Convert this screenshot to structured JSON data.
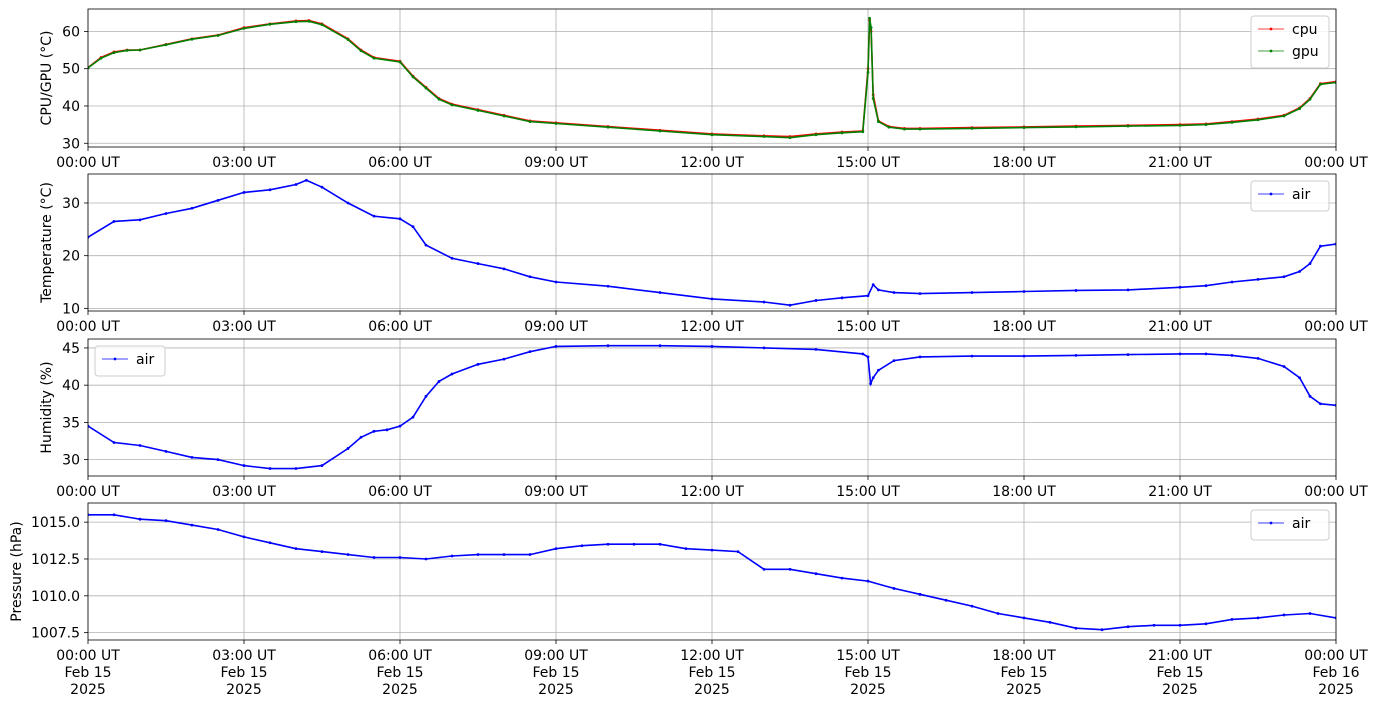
{
  "x_tick_labels": [
    "00:00 UT",
    "03:00 UT",
    "06:00 UT",
    "09:00 UT",
    "12:00 UT",
    "15:00 UT",
    "18:00 UT",
    "21:00 UT",
    "00:00 UT"
  ],
  "x_tick_date_labels": [
    [
      "Feb 15",
      "2025"
    ],
    [
      "Feb 15",
      "2025"
    ],
    [
      "Feb 15",
      "2025"
    ],
    [
      "Feb 15",
      "2025"
    ],
    [
      "Feb 15",
      "2025"
    ],
    [
      "Feb 15",
      "2025"
    ],
    [
      "Feb 15",
      "2025"
    ],
    [
      "Feb 15",
      "2025"
    ],
    [
      "Feb 16",
      "2025"
    ]
  ],
  "colors": {
    "cpu": "#ff0000",
    "gpu": "#008000",
    "air": "#0000ff",
    "grid": "#b0b0b0"
  },
  "chart_data": [
    {
      "type": "line",
      "ylabel": "CPU/GPU (°C)",
      "ylim": [
        29,
        66
      ],
      "yticks": [
        30,
        40,
        50,
        60
      ],
      "ytick_labels": [
        "30",
        "40",
        "50",
        "60"
      ],
      "grid": true,
      "legend_position": "top-right",
      "x_unit": "hours since 2025-02-15 00:00 UT",
      "xlim": [
        0,
        24
      ],
      "x": [
        0,
        0.25,
        0.5,
        0.75,
        1,
        1.5,
        2,
        2.5,
        3,
        3.5,
        4,
        4.25,
        4.5,
        5,
        5.25,
        5.5,
        6,
        6.25,
        6.5,
        6.75,
        7,
        7.5,
        8,
        8.5,
        9,
        10,
        11,
        12,
        13,
        13.5,
        14,
        14.5,
        14.9,
        15,
        15.03,
        15.06,
        15.1,
        15.2,
        15.4,
        15.7,
        16,
        17,
        18,
        19,
        20,
        21,
        21.5,
        22,
        22.5,
        23,
        23.3,
        23.5,
        23.7,
        24
      ],
      "series": [
        {
          "name": "cpu",
          "color_key": "cpu",
          "values": [
            50.3,
            53,
            54.5,
            55,
            55,
            56.5,
            58,
            59,
            61,
            62,
            62.8,
            62.9,
            62,
            58,
            55,
            53,
            52,
            48,
            45,
            42,
            40.5,
            39,
            37.5,
            36,
            35.5,
            34.5,
            33.5,
            32.5,
            32,
            31.8,
            32.5,
            33,
            33.3,
            50,
            63,
            60,
            43,
            36,
            34.5,
            34,
            34,
            34.2,
            34.4,
            34.6,
            34.8,
            35,
            35.2,
            35.8,
            36.5,
            37.5,
            39.5,
            42,
            46,
            46.5
          ]
        },
        {
          "name": "gpu",
          "color_key": "gpu",
          "values": [
            50.2,
            52.8,
            54.3,
            54.9,
            55,
            56.4,
            57.9,
            58.9,
            60.8,
            61.9,
            62.6,
            62.7,
            61.8,
            57.8,
            54.8,
            52.8,
            51.8,
            47.8,
            44.8,
            41.8,
            40.3,
            38.8,
            37.3,
            35.8,
            35.3,
            34.3,
            33.3,
            32.3,
            31.8,
            31.5,
            32.3,
            32.8,
            33.1,
            49,
            63.5,
            61,
            42,
            35.8,
            34.3,
            33.8,
            33.8,
            34,
            34.2,
            34.4,
            34.6,
            34.8,
            35,
            35.6,
            36.3,
            37.3,
            39.3,
            41.8,
            45.8,
            46.3
          ]
        }
      ]
    },
    {
      "type": "line",
      "ylabel": "Temperature (°C)",
      "ylim": [
        9.5,
        35.5
      ],
      "yticks": [
        10,
        20,
        30
      ],
      "ytick_labels": [
        "10",
        "20",
        "30"
      ],
      "grid": true,
      "legend_position": "top-right",
      "x_unit": "hours since 2025-02-15 00:00 UT",
      "xlim": [
        0,
        24
      ],
      "x": [
        0,
        0.5,
        1,
        1.5,
        2,
        2.5,
        3,
        3.5,
        4,
        4.2,
        4.5,
        5,
        5.5,
        6,
        6.25,
        6.5,
        7,
        7.5,
        8,
        8.5,
        9,
        10,
        11,
        12,
        13,
        13.5,
        14,
        14.5,
        15,
        15.1,
        15.2,
        15.5,
        16,
        17,
        18,
        19,
        20,
        21,
        21.5,
        22,
        22.5,
        23,
        23.3,
        23.5,
        23.7,
        24
      ],
      "series": [
        {
          "name": "air",
          "color_key": "air",
          "values": [
            23.5,
            26.5,
            26.8,
            28,
            29,
            30.5,
            32,
            32.5,
            33.5,
            34.3,
            33,
            30,
            27.5,
            27,
            25.5,
            22,
            19.5,
            18.5,
            17.5,
            16,
            15,
            14.2,
            13,
            11.8,
            11.2,
            10.6,
            11.5,
            12,
            12.4,
            14.5,
            13.5,
            13,
            12.8,
            13,
            13.2,
            13.4,
            13.5,
            14,
            14.3,
            15,
            15.5,
            16,
            17,
            18.5,
            21.8,
            22.2
          ]
        }
      ]
    },
    {
      "type": "line",
      "ylabel": "Humidity (%)",
      "ylim": [
        27.8,
        46.2
      ],
      "yticks": [
        30,
        35,
        40,
        45
      ],
      "ytick_labels": [
        "30",
        "35",
        "40",
        "45"
      ],
      "grid": true,
      "legend_position": "top-left",
      "x_unit": "hours since 2025-02-15 00:00 UT",
      "xlim": [
        0,
        24
      ],
      "x": [
        0,
        0.5,
        1,
        1.5,
        2,
        2.5,
        3,
        3.5,
        4,
        4.5,
        5,
        5.25,
        5.5,
        5.75,
        6,
        6.25,
        6.5,
        6.75,
        7,
        7.5,
        8,
        8.5,
        9,
        10,
        11,
        12,
        13,
        14,
        14.9,
        15,
        15.05,
        15.1,
        15.2,
        15.5,
        16,
        17,
        18,
        19,
        20,
        21,
        21.5,
        22,
        22.5,
        23,
        23.3,
        23.5,
        23.7,
        24
      ],
      "series": [
        {
          "name": "air",
          "color_key": "air",
          "values": [
            34.5,
            32.3,
            31.9,
            31.1,
            30.3,
            30,
            29.2,
            28.8,
            28.8,
            29.2,
            31.5,
            33,
            33.8,
            34,
            34.5,
            35.7,
            38.5,
            40.5,
            41.5,
            42.8,
            43.5,
            44.5,
            45.2,
            45.3,
            45.3,
            45.2,
            45,
            44.8,
            44.2,
            43.8,
            40.2,
            41,
            42,
            43.3,
            43.8,
            43.9,
            43.9,
            44,
            44.1,
            44.2,
            44.2,
            44,
            43.6,
            42.5,
            41,
            38.5,
            37.5,
            37.3
          ]
        }
      ]
    },
    {
      "type": "line",
      "ylabel": "Pressure (hPa)",
      "ylim": [
        1007.0,
        1016.3
      ],
      "yticks": [
        1007.5,
        1010.0,
        1012.5,
        1015.0
      ],
      "ytick_labels": [
        "1007.5",
        "1010.0",
        "1012.5",
        "1015.0"
      ],
      "grid": true,
      "legend_position": "top-right",
      "x_unit": "hours since 2025-02-15 00:00 UT",
      "xlim": [
        0,
        24
      ],
      "x": [
        0,
        0.5,
        1,
        1.5,
        2,
        2.5,
        3,
        3.5,
        4,
        4.5,
        5,
        5.5,
        6,
        6.5,
        7,
        7.5,
        8,
        8.5,
        9,
        9.5,
        10,
        10.5,
        11,
        11.5,
        12,
        12.5,
        13,
        13.5,
        14,
        14.5,
        15,
        15.5,
        16,
        16.5,
        17,
        17.5,
        18,
        18.5,
        19,
        19.5,
        20,
        20.5,
        21,
        21.5,
        22,
        22.5,
        23,
        23.5,
        24
      ],
      "series": [
        {
          "name": "air",
          "color_key": "air",
          "values": [
            1015.5,
            1015.5,
            1015.2,
            1015.1,
            1014.8,
            1014.5,
            1014.0,
            1013.6,
            1013.2,
            1013.0,
            1012.8,
            1012.6,
            1012.6,
            1012.5,
            1012.7,
            1012.8,
            1012.8,
            1012.8,
            1013.2,
            1013.4,
            1013.5,
            1013.5,
            1013.5,
            1013.2,
            1013.1,
            1013.0,
            1011.8,
            1011.8,
            1011.5,
            1011.2,
            1011.0,
            1010.5,
            1010.1,
            1009.7,
            1009.3,
            1008.8,
            1008.5,
            1008.2,
            1007.8,
            1007.7,
            1007.9,
            1008.0,
            1008.0,
            1008.1,
            1008.4,
            1008.5,
            1008.7,
            1008.8,
            1008.5
          ]
        }
      ]
    }
  ]
}
